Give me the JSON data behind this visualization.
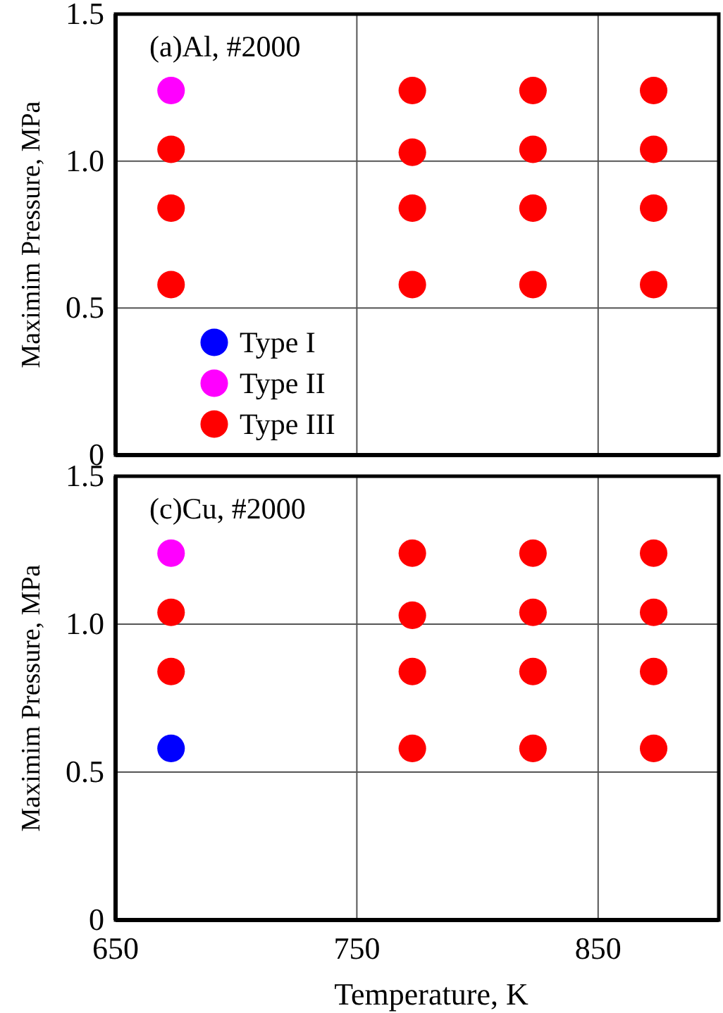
{
  "chart_data": [
    {
      "type": "scatter",
      "title": "(a)Al, #2000",
      "ylabel": "Maximim Pressure, MPa",
      "xlim": [
        650,
        900
      ],
      "xticks": [
        650,
        750,
        850
      ],
      "ylim": [
        0,
        1.5
      ],
      "yticks": [
        0,
        0.5,
        {
          "value": 1,
          "label": "1.0"
        },
        1.5
      ],
      "tick_labels": "y",
      "grid": true,
      "legend": "bottom left",
      "marker": "circle",
      "series": [
        {
          "name": "Type I",
          "color": "#0000ff"
        },
        {
          "name": "Type II",
          "color": "#ff00ff",
          "x": [
            673
          ],
          "values": [
            1.24
          ]
        },
        {
          "name": "Type III",
          "color": "#ff0000",
          "x": [
            673,
            673,
            673,
            773,
            773,
            773,
            773,
            823,
            823,
            823,
            823,
            873,
            873,
            873,
            873
          ],
          "values": [
            1.04,
            0.84,
            0.58,
            1.24,
            1.03,
            0.84,
            0.58,
            1.24,
            1.04,
            0.84,
            0.58,
            1.24,
            1.04,
            0.84,
            0.58
          ]
        }
      ]
    },
    {
      "type": "scatter",
      "title": "(c)Cu, #2000",
      "xlabel": "Temperature, K",
      "ylabel": "Maximim Pressure, MPa",
      "xlim": [
        650,
        900
      ],
      "xticks": [
        650,
        750,
        850
      ],
      "ylim": [
        0,
        1.5
      ],
      "yticks": [
        0,
        0.5,
        {
          "value": 1,
          "label": "1.0"
        },
        1.5
      ],
      "grid": true,
      "marker": "circle",
      "series": [
        {
          "color": "#0000ff",
          "x": [
            673
          ],
          "values": [
            0.58
          ]
        },
        {
          "color": "#ff00ff",
          "x": [
            673
          ],
          "values": [
            1.24
          ]
        },
        {
          "color": "#ff0000",
          "x": [
            673,
            673,
            773,
            773,
            773,
            773,
            823,
            823,
            823,
            823,
            873,
            873,
            873,
            873
          ],
          "values": [
            1.04,
            0.84,
            1.24,
            1.03,
            0.84,
            0.58,
            1.24,
            1.04,
            0.84,
            0.58,
            1.24,
            1.04,
            0.84,
            0.58
          ]
        }
      ]
    }
  ]
}
